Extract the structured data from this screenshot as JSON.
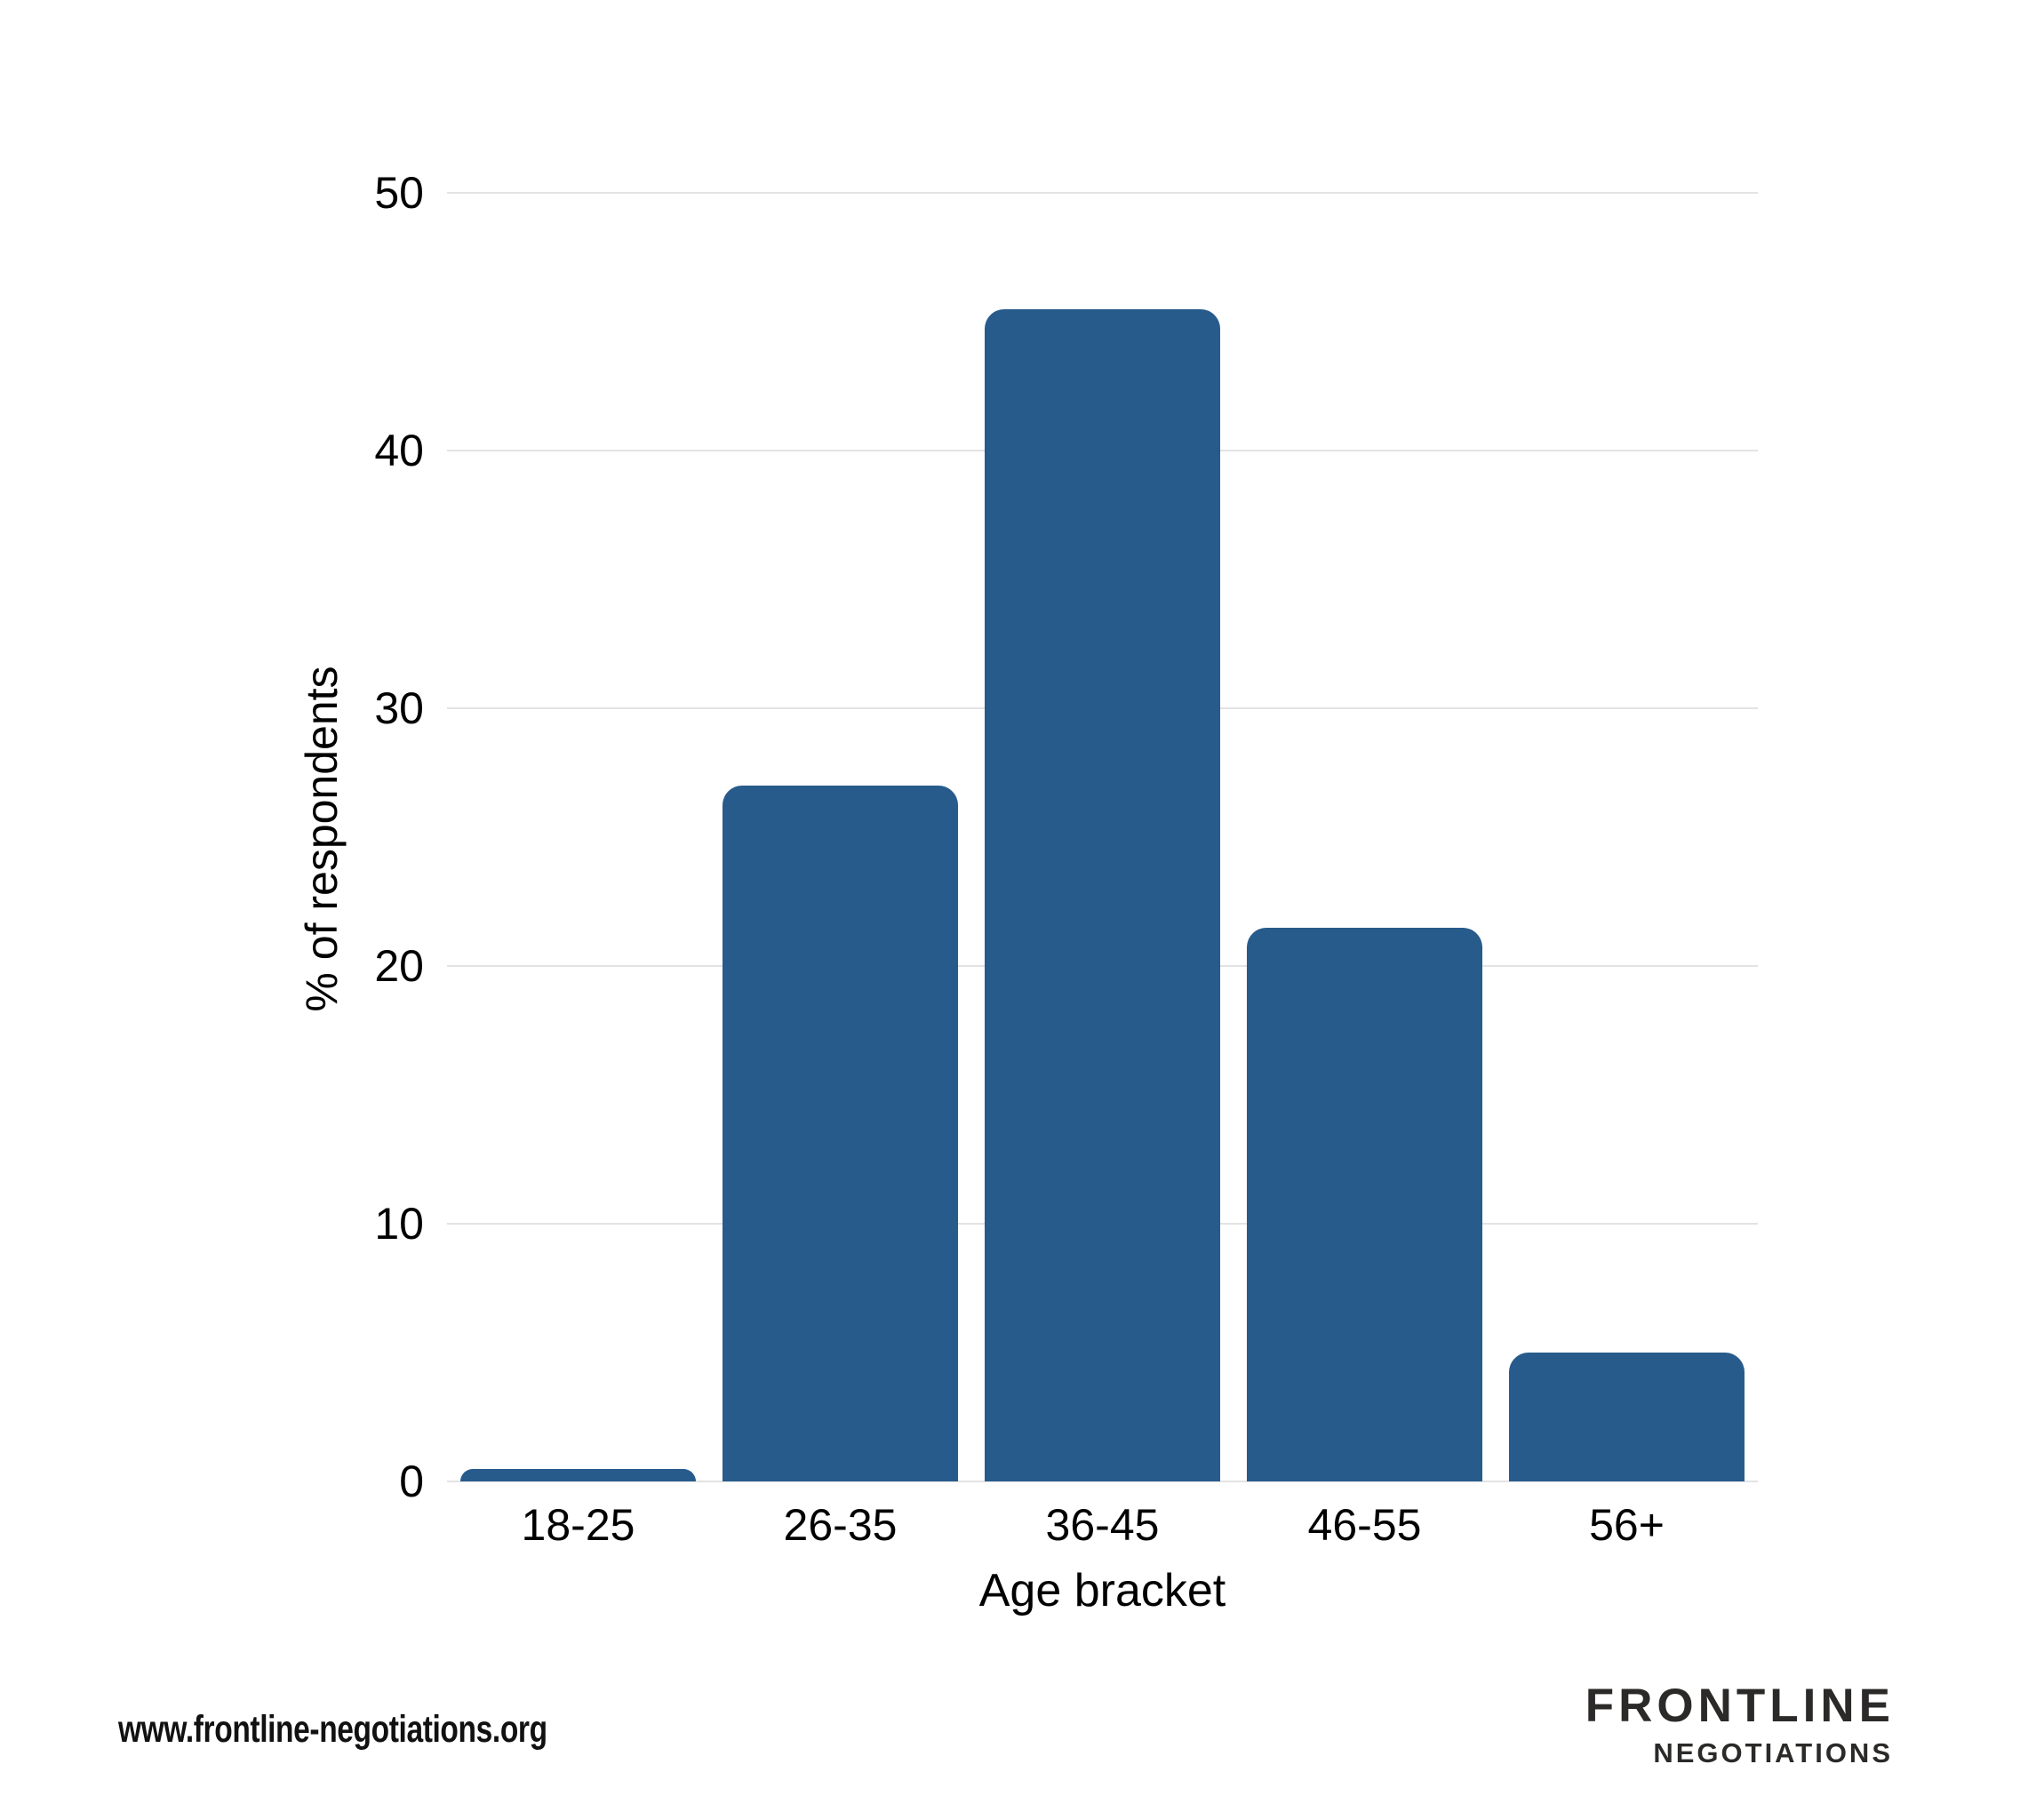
{
  "chart_data": {
    "type": "bar",
    "categories": [
      "18-25",
      "26-35",
      "36-45",
      "46-55",
      "56+"
    ],
    "values": [
      0.5,
      27,
      45.5,
      21.5,
      5
    ],
    "title": "",
    "xlabel": "Age bracket",
    "ylabel": "% of respondents",
    "ylim": [
      0,
      50
    ],
    "yticks": [
      0,
      10,
      20,
      30,
      40,
      50
    ],
    "grid": true,
    "legend": false,
    "bar_color": "#275b8c",
    "gridline_color": "#e3e3e3"
  },
  "footer": {
    "url": "www.frontline-negotiations.org",
    "logo_line1": "FRONTLINE",
    "logo_line2": "NEGOTIATIONS"
  }
}
